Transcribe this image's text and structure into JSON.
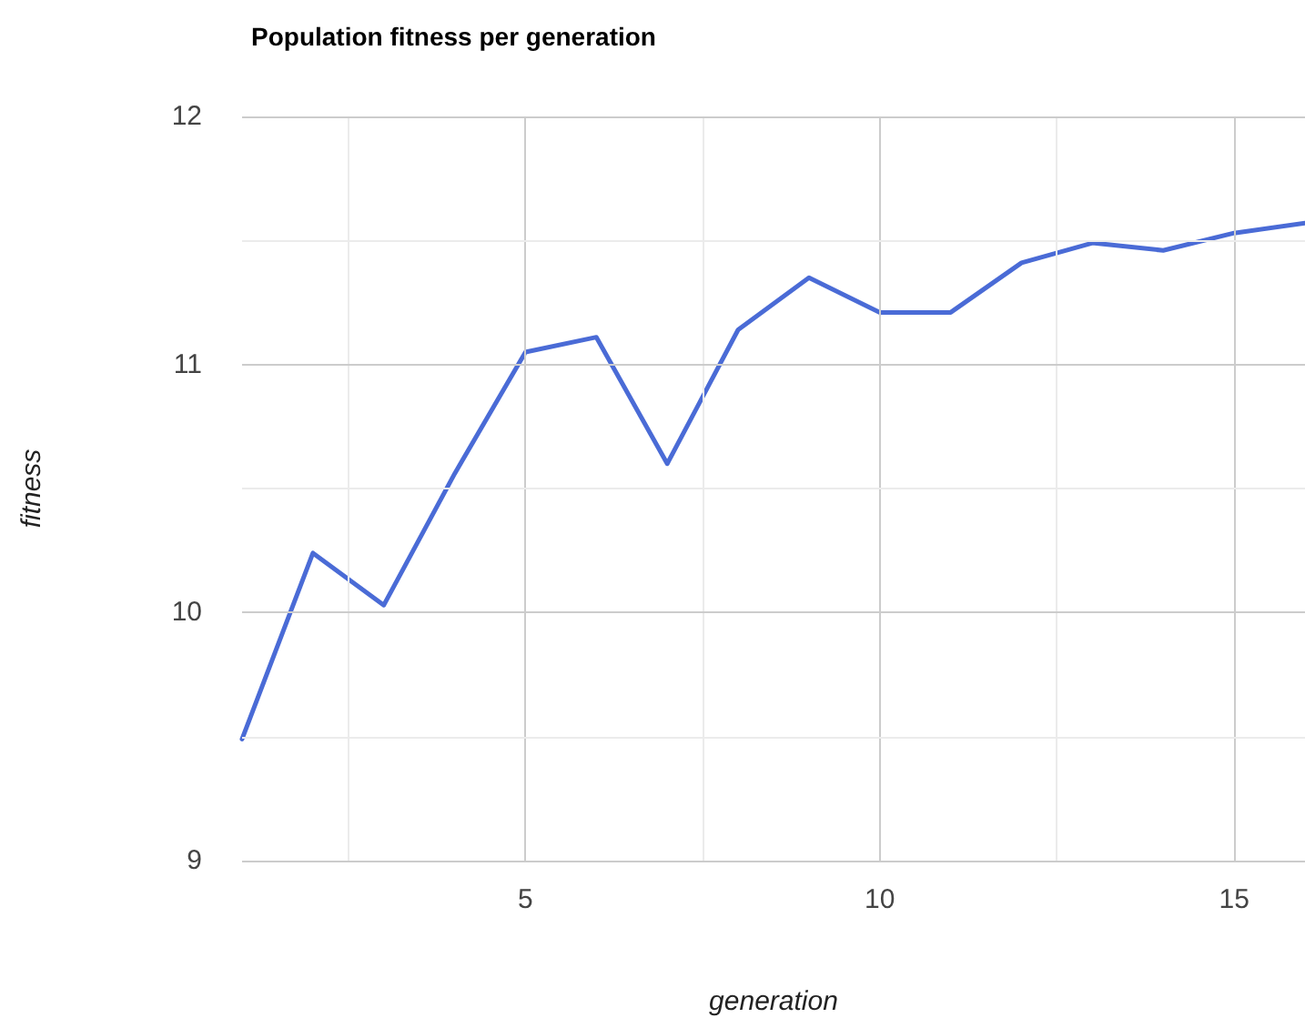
{
  "chart_data": {
    "type": "line",
    "title": "Population fitness per generation",
    "xlabel": "generation",
    "ylabel": "fitness",
    "x": [
      1,
      2,
      3,
      4,
      5,
      6,
      7,
      8,
      9,
      10,
      11,
      12,
      13,
      14,
      15,
      16
    ],
    "series": [
      {
        "color": "#4a6bd6",
        "values": [
          9.49,
          10.24,
          10.03,
          10.56,
          11.05,
          11.11,
          10.6,
          11.14,
          11.35,
          11.21,
          11.21,
          11.41,
          11.49,
          11.46,
          11.53,
          11.57
        ]
      }
    ],
    "xlim": [
      1,
      16
    ],
    "xticks": [
      5,
      10,
      15
    ],
    "ylim": [
      9,
      12
    ],
    "yticks": [
      9,
      10,
      11,
      12
    ],
    "grid": true,
    "marker": "none",
    "line_style": "solid"
  }
}
